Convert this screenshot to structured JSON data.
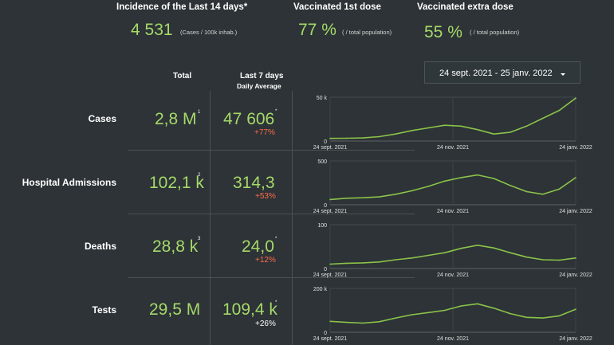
{
  "kpis": [
    {
      "title": "Incidence of the Last 14 days*",
      "value": "4 531",
      "unit": "(Cases / 100k inhab.)"
    },
    {
      "title": "Vaccinated 1st dose",
      "value": "77 %",
      "unit": "( / total population)"
    },
    {
      "title": "Vaccinated extra dose",
      "value": "55 %",
      "unit": "( / total population)"
    }
  ],
  "columns": {
    "total": "Total",
    "last7": "Last 7 days",
    "daily_avg": "Daily Average"
  },
  "date_range": "24 sept. 2021 - 25 janv. 2022",
  "rows": [
    {
      "label": "Cases",
      "total": "2,8 M",
      "total_sup": "1",
      "last7": "47 606",
      "last7_sup": "*",
      "change": "+77%",
      "change_color": "red"
    },
    {
      "label": "Hospital Admissions",
      "total": "102,1 k",
      "total_sup": "2",
      "last7": "314,3",
      "last7_sup": "",
      "change": "+53%",
      "change_color": "red"
    },
    {
      "label": "Deaths",
      "total": "28,8 k",
      "total_sup": "3",
      "last7": "24,0",
      "last7_sup": "*",
      "change": "+12%",
      "change_color": "red"
    },
    {
      "label": "Tests",
      "total": "29,5 M",
      "total_sup": "",
      "last7": "109,4 k",
      "last7_sup": "*",
      "change": "+26%",
      "change_color": "white"
    }
  ],
  "chart_data": [
    {
      "type": "line",
      "series_label": "Cases",
      "ytick_labels": [
        "50 k",
        "0"
      ],
      "ylim": [
        0,
        50000
      ],
      "xtick_labels": [
        "24 sept. 2021",
        "24 nov. 2021",
        "24 janv. 2022"
      ],
      "x": [
        0,
        8,
        16,
        24,
        32,
        40,
        48,
        56,
        64,
        72,
        80,
        88,
        96,
        104,
        112,
        120
      ],
      "y": [
        3000,
        3200,
        3500,
        5000,
        8000,
        12000,
        15000,
        18000,
        17000,
        13000,
        8000,
        10000,
        17000,
        26000,
        35000,
        49000
      ]
    },
    {
      "type": "line",
      "series_label": "Hospital Admissions",
      "ytick_labels": [
        "500",
        "0"
      ],
      "ylim": [
        0,
        500
      ],
      "xtick_labels": [
        "24 sept. 2021",
        "24 nov. 2021",
        "24 janv. 2022"
      ],
      "x": [
        0,
        8,
        16,
        24,
        32,
        40,
        48,
        56,
        64,
        72,
        80,
        88,
        96,
        104,
        112,
        120
      ],
      "y": [
        60,
        75,
        80,
        90,
        120,
        160,
        210,
        270,
        310,
        340,
        300,
        220,
        150,
        120,
        180,
        310
      ]
    },
    {
      "type": "line",
      "series_label": "Deaths",
      "ytick_labels": [
        "100",
        "0"
      ],
      "ylim": [
        0,
        100
      ],
      "xtick_labels": [
        "24 sept. 2021",
        "24 nov. 2021",
        "24 janv. 2022"
      ],
      "x": [
        0,
        8,
        16,
        24,
        32,
        40,
        48,
        56,
        64,
        72,
        80,
        88,
        96,
        104,
        112,
        120
      ],
      "y": [
        10,
        12,
        13,
        15,
        20,
        24,
        30,
        36,
        46,
        53,
        47,
        36,
        26,
        20,
        19,
        24
      ]
    },
    {
      "type": "line",
      "series_label": "Tests",
      "ytick_labels": [
        "200 k",
        "0"
      ],
      "ylim": [
        0,
        200000
      ],
      "xtick_labels": [
        "24 sept. 2021",
        "24 nov. 2021",
        "24 janv. 2022"
      ],
      "x": [
        0,
        8,
        16,
        24,
        32,
        40,
        48,
        56,
        64,
        72,
        80,
        88,
        96,
        104,
        112,
        120
      ],
      "y": [
        50000,
        45000,
        42000,
        48000,
        65000,
        80000,
        90000,
        100000,
        120000,
        130000,
        110000,
        85000,
        68000,
        65000,
        75000,
        105000
      ]
    }
  ],
  "colors": {
    "background": "#2d3336",
    "accent_green": "#a6d96a",
    "increase_red": "#ff6b4a",
    "line": "#8bc34a"
  }
}
